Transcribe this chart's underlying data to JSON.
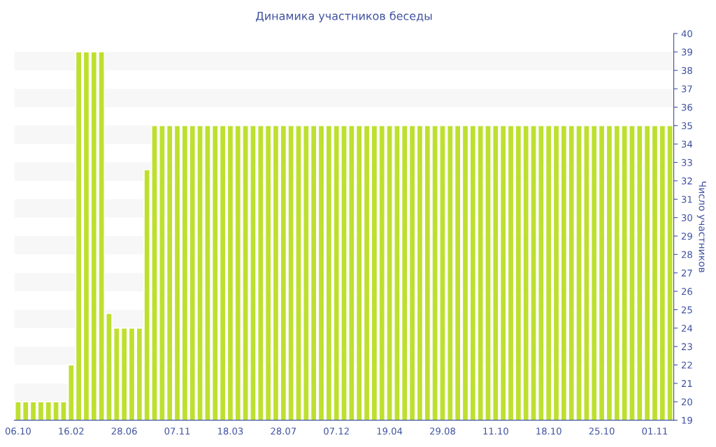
{
  "chart_data": {
    "type": "bar",
    "title": "Динамика участников беседы",
    "ylabel": "Число участников",
    "categories": [
      "06.10",
      null,
      null,
      null,
      null,
      null,
      null,
      "16.02",
      null,
      null,
      null,
      null,
      null,
      null,
      "28.06",
      null,
      null,
      null,
      null,
      null,
      null,
      "07.11",
      null,
      null,
      null,
      null,
      null,
      null,
      "18.03",
      null,
      null,
      null,
      null,
      null,
      null,
      "28.07",
      null,
      null,
      null,
      null,
      null,
      null,
      "07.12",
      null,
      null,
      null,
      null,
      null,
      null,
      "19.04",
      null,
      null,
      null,
      null,
      null,
      null,
      "29.08",
      null,
      null,
      null,
      null,
      null,
      null,
      "11.10",
      null,
      null,
      null,
      null,
      null,
      null,
      "18.10",
      null,
      null,
      null,
      null,
      null,
      null,
      "25.10",
      null,
      null,
      null,
      null,
      null,
      null,
      "01.11",
      null,
      null
    ],
    "values": [
      20,
      20,
      20,
      20,
      20,
      20,
      20,
      22,
      39,
      39,
      39,
      39,
      24.8,
      24,
      24,
      24,
      24,
      32.6,
      35,
      35,
      35,
      35,
      35,
      35,
      35,
      35,
      35,
      35,
      35,
      35,
      35,
      35,
      35,
      35,
      35,
      35,
      35,
      35,
      35,
      35,
      35,
      35,
      35,
      35,
      35,
      35,
      35,
      35,
      35,
      35,
      35,
      35,
      35,
      35,
      35,
      35,
      35,
      35,
      35,
      35,
      35,
      35,
      35,
      35,
      35,
      35,
      35,
      35,
      35,
      35,
      35,
      35,
      35,
      35,
      35,
      35,
      35,
      35,
      35,
      35,
      35,
      35,
      35,
      35,
      35,
      35,
      35
    ],
    "color": "#bde02f",
    "ylim": [
      19,
      40
    ],
    "yticks": [
      19,
      20,
      21,
      22,
      23,
      24,
      25,
      26,
      27,
      28,
      29,
      30,
      31,
      32,
      33,
      34,
      35,
      36,
      37,
      38,
      39,
      40
    ],
    "legend": false,
    "bands": [
      {
        "axis": "y",
        "from": 20,
        "to": 21,
        "color": "#f7f7f7"
      },
      {
        "axis": "y",
        "from": 22,
        "to": 23,
        "color": "#f7f7f7"
      },
      {
        "axis": "y",
        "from": 24,
        "to": 25,
        "color": "#f7f7f7"
      },
      {
        "axis": "y",
        "from": 26,
        "to": 27,
        "color": "#f7f7f7"
      },
      {
        "axis": "y",
        "from": 28,
        "to": 29,
        "color": "#f7f7f7"
      },
      {
        "axis": "y",
        "from": 30,
        "to": 31,
        "color": "#f7f7f7"
      },
      {
        "axis": "y",
        "from": 32,
        "to": 33,
        "color": "#f7f7f7"
      },
      {
        "axis": "y",
        "from": 34,
        "to": 35,
        "color": "#f7f7f7"
      },
      {
        "axis": "y",
        "from": 36,
        "to": 37,
        "color": "#f7f7f7"
      },
      {
        "axis": "y",
        "from": 38,
        "to": 39,
        "color": "#f7f7f7"
      }
    ]
  }
}
